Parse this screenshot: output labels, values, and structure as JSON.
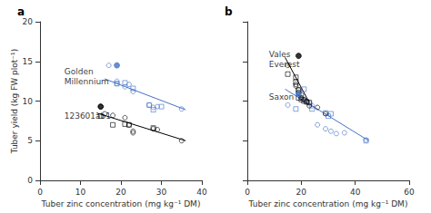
{
  "chart_data": [
    {
      "type": "scatter",
      "title": "a",
      "xlabel": "Tuber zinc concentration (mg kg⁻¹ DM)",
      "ylabel": "Tuber yield (kg FW plot⁻¹)",
      "xlim": [
        0,
        40
      ],
      "ylim": [
        0,
        20
      ],
      "xticks": [
        0,
        10,
        20,
        30,
        40
      ],
      "yticks": [
        0,
        5,
        10,
        15,
        20
      ],
      "grid": false,
      "series": [
        {
          "type": "scatter",
          "color": "#4472C4",
          "marker": "circle_open",
          "x": [
            17,
            19,
            19,
            21,
            22,
            23,
            27,
            28,
            29,
            35
          ],
          "values": [
            14.5,
            12.5,
            12.2,
            11.8,
            12.1,
            11.2,
            9.5,
            9.2,
            9.3,
            9.0
          ]
        },
        {
          "type": "scatter",
          "color": "#4472C4",
          "marker": "square_open",
          "x": [
            19,
            21,
            23,
            27,
            28,
            30
          ],
          "values": [
            12.2,
            12.3,
            11.6,
            9.5,
            8.9,
            9.3
          ]
        },
        {
          "type": "scatter",
          "color": "#000000",
          "marker": "circle_open",
          "x": [
            15,
            16,
            18,
            21,
            22,
            23,
            23,
            28,
            29,
            35
          ],
          "values": [
            9.3,
            8.4,
            8.2,
            7.9,
            7.0,
            6.2,
            6.0,
            6.5,
            6.4,
            5.0
          ]
        },
        {
          "type": "scatter",
          "color": "#000000",
          "marker": "square_open",
          "x": [
            15,
            18,
            21,
            22,
            28
          ],
          "values": [
            8.1,
            7.0,
            7.1,
            7.0,
            6.6
          ]
        },
        {
          "type": "scatter",
          "color": "#000000",
          "marker": "circle",
          "x": [
            15
          ],
          "values": [
            9.3
          ]
        },
        {
          "type": "scatter",
          "color": "#4472C4",
          "marker": "circle",
          "x": [
            19
          ],
          "values": [
            14.5
          ]
        },
        {
          "type": "line",
          "color": "#4472C4",
          "x": [
            16,
            36
          ],
          "values": [
            12.8,
            8.9
          ]
        },
        {
          "type": "line",
          "color": "#000000",
          "x": [
            14,
            36
          ],
          "values": [
            8.5,
            5.0
          ]
        }
      ],
      "annotations": [
        {
          "text": "Golden\nMillennium",
          "x": 6,
          "y": 14.3
        },
        {
          "text": "123601ab1",
          "x": 6,
          "y": 8.8
        }
      ]
    },
    {
      "type": "scatter",
      "title": "b",
      "xlabel": "Tuber zinc concentration (mg kg⁻¹ DM)",
      "xlim": [
        0,
        60
      ],
      "ylim": [
        0,
        20
      ],
      "xticks": [
        0,
        20,
        40,
        60
      ],
      "yticks": [
        0,
        5,
        10,
        15,
        20
      ],
      "grid": false,
      "tick_labels": "x",
      "series": [
        {
          "type": "scatter",
          "color": "#4472C4",
          "marker": "circle_open",
          "x": [
            15,
            19,
            20,
            21,
            22,
            23,
            24,
            26,
            29,
            31,
            33,
            36,
            44
          ],
          "values": [
            9.5,
            11.0,
            10.4,
            10.2,
            10.0,
            9.8,
            9.4,
            7.0,
            6.5,
            6.2,
            5.9,
            6.0,
            5.1
          ]
        },
        {
          "type": "scatter",
          "color": "#4472C4",
          "marker": "square_open",
          "x": [
            18,
            21,
            24,
            29,
            30,
            31,
            44
          ],
          "values": [
            9.0,
            11.5,
            9.0,
            8.5,
            8.1,
            8.4,
            5.0
          ]
        },
        {
          "type": "scatter",
          "color": "#000000",
          "marker": "circle_open",
          "x": [
            15,
            18,
            18,
            19,
            19,
            20,
            20,
            21,
            22,
            23,
            26,
            29
          ],
          "values": [
            14.5,
            12.1,
            11.9,
            11.4,
            11.1,
            10.8,
            10.4,
            10.2,
            9.9,
            9.4,
            9.2,
            8.4
          ]
        },
        {
          "type": "scatter",
          "color": "#000000",
          "marker": "square_open",
          "x": [
            15,
            18,
            18,
            19,
            19,
            20,
            21,
            22,
            23
          ],
          "values": [
            13.4,
            13.0,
            12.4,
            11.4,
            10.4,
            10.2,
            10.0,
            9.9,
            9.8
          ]
        },
        {
          "type": "scatter",
          "color": "#000000",
          "marker": "circle",
          "x": [
            19
          ],
          "values": [
            15.7
          ]
        },
        {
          "type": "scatter",
          "color": "#4472C4",
          "marker": "circle",
          "x": [
            19
          ],
          "values": [
            10.9
          ]
        },
        {
          "type": "line",
          "color": "#4472C4",
          "x": [
            14,
            45
          ],
          "values": [
            11.5,
            5.0
          ]
        },
        {
          "type": "line",
          "color": "#000000",
          "x": [
            14,
            23
          ],
          "values": [
            15.5,
            9.8
          ]
        }
      ],
      "annotations": [
        {
          "text": "Vales\nEverest",
          "x": 8,
          "y": 16.5
        },
        {
          "text": "Saxon",
          "x": 8,
          "y": 11.2
        }
      ]
    }
  ]
}
